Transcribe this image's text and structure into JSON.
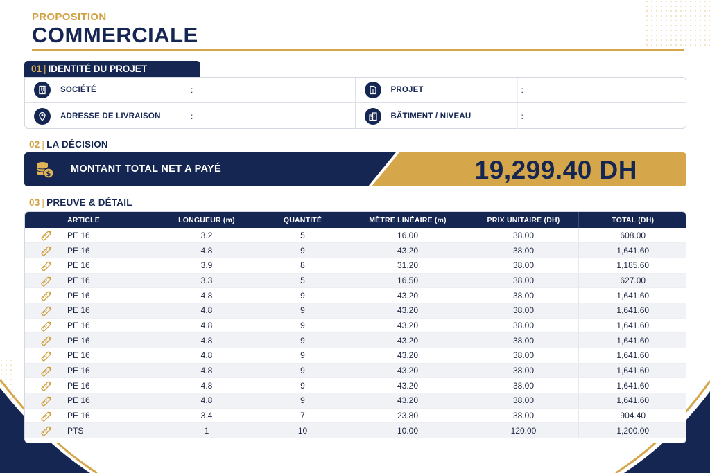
{
  "header": {
    "kicker": "PROPOSITION",
    "title": "COMMERCIALE"
  },
  "sections": {
    "identity": {
      "num": "01",
      "label": "IDENTITÉ DU PROJET"
    },
    "decision": {
      "num": "02",
      "label": "LA DÉCISION"
    },
    "detail": {
      "num": "03",
      "label": "PREUVE & DÉTAIL"
    }
  },
  "identity_fields": [
    {
      "label": "SOCIÉTÉ",
      "value": ":",
      "icon": "building-icon"
    },
    {
      "label": "PROJET",
      "value": ":",
      "icon": "document-icon"
    },
    {
      "label": "ADRESSE DE LIVRAISON",
      "value": ":",
      "icon": "location-pin-icon"
    },
    {
      "label": "BÂTIMENT / NIVEAU",
      "value": ":",
      "icon": "buildings-icon"
    }
  ],
  "decision": {
    "label": "MONTANT TOTAL NET A PAYÉ",
    "amount": "19,299.40 DH",
    "icon": "coins-icon"
  },
  "table": {
    "headers": [
      "ARTICLE",
      "LONGUEUR (m)",
      "QUANTITÉ",
      "MÈTRE LINÉAIRE (m)",
      "PRIX UNITAIRE (DH)",
      "TOTAL (DH)"
    ],
    "row_icon": "pencil-ruler-icon",
    "rows": [
      [
        "PE 16",
        "3.2",
        "5",
        "16.00",
        "38.00",
        "608.00"
      ],
      [
        "PE 16",
        "4.8",
        "9",
        "43.20",
        "38.00",
        "1,641.60"
      ],
      [
        "PE 16",
        "3.9",
        "8",
        "31.20",
        "38.00",
        "1,185.60"
      ],
      [
        "PE 16",
        "3.3",
        "5",
        "16.50",
        "38.00",
        "627.00"
      ],
      [
        "PE 16",
        "4.8",
        "9",
        "43.20",
        "38.00",
        "1,641.60"
      ],
      [
        "PE 16",
        "4.8",
        "9",
        "43.20",
        "38.00",
        "1,641.60"
      ],
      [
        "PE 16",
        "4.8",
        "9",
        "43.20",
        "38.00",
        "1,641.60"
      ],
      [
        "PE 16",
        "4.8",
        "9",
        "43.20",
        "38.00",
        "1,641.60"
      ],
      [
        "PE 16",
        "4.8",
        "9",
        "43.20",
        "38.00",
        "1,641.60"
      ],
      [
        "PE 16",
        "4.8",
        "9",
        "43.20",
        "38.00",
        "1,641.60"
      ],
      [
        "PE 16",
        "4.8",
        "9",
        "43.20",
        "38.00",
        "1,641.60"
      ],
      [
        "PE 16",
        "4.8",
        "9",
        "43.20",
        "38.00",
        "1,641.60"
      ],
      [
        "PE 16",
        "3.4",
        "7",
        "23.80",
        "38.00",
        "904.40"
      ],
      [
        "PTS",
        "1",
        "10",
        "10.00",
        "120.00",
        "1,200.00"
      ]
    ]
  },
  "colors": {
    "navy": "#152652",
    "gold": "#d6a64a",
    "gold_text": "#d1a041"
  }
}
